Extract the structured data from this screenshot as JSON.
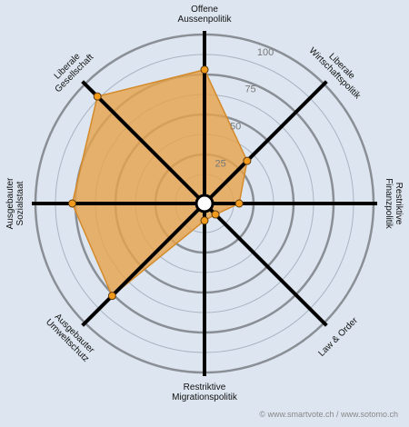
{
  "chart_data": {
    "type": "radar",
    "categories": [
      [
        "Offene",
        "Aussenpolitik"
      ],
      [
        "Liberale",
        "Wirtschaftspolitik"
      ],
      [
        "Restriktive",
        "Finanzpolitik"
      ],
      [
        "Law & Order"
      ],
      [
        "Restriktive",
        "Migrationspolitik"
      ],
      [
        "Ausgebauter",
        "Umweltschutz"
      ],
      [
        "Ausgebauter",
        "Sozialstaat"
      ],
      [
        "Liberale",
        "Gesellschaft"
      ]
    ],
    "values": [
      78,
      32,
      16,
      4,
      5,
      76,
      77,
      89
    ],
    "color": "#e6a24a",
    "ylim": [
      0,
      100
    ],
    "yticks": [
      25,
      50,
      75,
      100
    ],
    "footer": "© www.smartvote.ch / www.sotomo.ch"
  }
}
